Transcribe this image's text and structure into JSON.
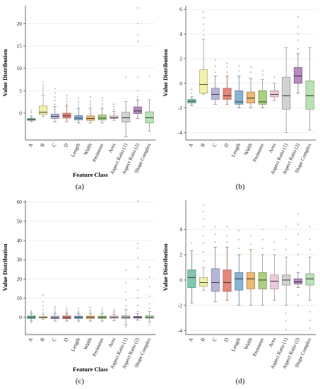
{
  "chart_data": [
    {
      "type": "box",
      "caption": "(a)",
      "xlabel": "Feature Class",
      "ylabel": "Value Distribution",
      "ylim": [
        -6,
        24
      ],
      "yticks": [
        0,
        5,
        10,
        15,
        20
      ],
      "grid": true,
      "categories": [
        "A",
        "B",
        "C",
        "D",
        "Length",
        "Width",
        "Perimeter",
        "Area",
        "Aspect Ratio (1)",
        "Aspect Ratio (2)",
        "Shape Complex"
      ],
      "colors": [
        "#7fc7b0",
        "#f3f1a8",
        "#b8b4d8",
        "#e8857a",
        "#86b2d6",
        "#f0b872",
        "#a9d180",
        "#f0c8dc",
        "#d2d2d2",
        "#b58ac2",
        "#b9e2b4"
      ],
      "boxes": [
        {
          "lw": -1.9,
          "q1": -1.6,
          "med": -1.4,
          "q3": -1.2,
          "uw": -0.8,
          "out": [
            -0.5,
            0.2,
            0.6
          ]
        },
        {
          "lw": -0.8,
          "q1": -0.3,
          "med": 0.2,
          "q3": 1.6,
          "uw": 4.0,
          "out": [
            4.5,
            5.0,
            5.6,
            6.2,
            6.9
          ]
        },
        {
          "lw": -2.0,
          "q1": -1.2,
          "med": -0.7,
          "q3": -0.2,
          "uw": 1.5,
          "out": [
            2.0,
            2.8,
            3.6,
            4.5,
            5.5
          ]
        },
        {
          "lw": -1.9,
          "q1": -1.1,
          "med": -0.6,
          "q3": 0.0,
          "uw": 1.6,
          "out": [
            2.0,
            2.6,
            3.2,
            3.9
          ]
        },
        {
          "lw": -2.2,
          "q1": -1.5,
          "med": -1.1,
          "q3": -0.5,
          "uw": 1.0,
          "out": [
            1.4,
            2.0,
            2.6,
            3.3
          ]
        },
        {
          "lw": -2.2,
          "q1": -1.6,
          "med": -1.2,
          "q3": -0.6,
          "uw": 1.0,
          "out": [
            1.4,
            2.0,
            2.6,
            3.6
          ]
        },
        {
          "lw": -2.2,
          "q1": -1.5,
          "med": -1.1,
          "q3": -0.4,
          "uw": 1.0,
          "out": [
            1.4,
            2.0,
            2.8,
            3.3
          ]
        },
        {
          "lw": -1.6,
          "q1": -1.2,
          "med": -1.0,
          "q3": -0.6,
          "uw": 0.4,
          "out": [
            0.8,
            1.4,
            2.0
          ]
        },
        {
          "lw": -5.3,
          "q1": -2.0,
          "med": -1.0,
          "q3": 0.2,
          "uw": 2.6,
          "out": [
            8.0
          ]
        },
        {
          "lw": -1.2,
          "q1": -0.1,
          "med": 0.5,
          "q3": 1.4,
          "uw": 3.0,
          "out": [
            3.6,
            5.0,
            8.0,
            16.0,
            17.5,
            20.0,
            23.5
          ]
        },
        {
          "lw": -4.0,
          "q1": -2.2,
          "med": -1.0,
          "q3": 0.3,
          "uw": 3.0,
          "out": [
            8.2
          ]
        }
      ]
    },
    {
      "type": "box",
      "caption": "(b)",
      "xlabel": "",
      "ylabel": "Value Distribution",
      "ylim": [
        -4.6,
        6.3
      ],
      "yticks": [
        -4,
        -2,
        0,
        2,
        4,
        6
      ],
      "grid": true,
      "categories": [
        "A",
        "B",
        "C",
        "D",
        "Length",
        "Width",
        "Perimeter",
        "Area",
        "Aspect Ratio (1)",
        "Aspect Ratio (2)",
        "Shape Complex"
      ],
      "colors": [
        "#7fc7b0",
        "#f3f1a8",
        "#b8b4d8",
        "#e8857a",
        "#86b2d6",
        "#f0b872",
        "#a9d180",
        "#f0c8dc",
        "#d2d2d2",
        "#b58ac2",
        "#b9e2b4"
      ],
      "boxes": [
        {
          "lw": -1.8,
          "q1": -1.6,
          "med": -1.45,
          "q3": -1.3,
          "uw": -1.1,
          "out": [
            -0.8,
            -0.5
          ]
        },
        {
          "lw": -0.9,
          "q1": -0.8,
          "med": -0.1,
          "q3": 1.1,
          "uw": 3.6,
          "out": [
            3.9,
            4.3,
            4.8,
            5.3,
            5.8
          ]
        },
        {
          "lw": -1.7,
          "q1": -1.3,
          "med": -0.9,
          "q3": -0.4,
          "uw": 0.6,
          "out": [
            0.9,
            1.4,
            1.9
          ]
        },
        {
          "lw": -1.7,
          "q1": -1.3,
          "med": -1.0,
          "q3": -0.4,
          "uw": 0.6,
          "out": [
            0.9,
            1.3,
            1.6
          ]
        },
        {
          "lw": -2.0,
          "q1": -1.7,
          "med": -1.5,
          "q3": -0.6,
          "uw": 0.6,
          "out": [
            1.0,
            1.4
          ]
        },
        {
          "lw": -2.0,
          "q1": -1.6,
          "med": -1.2,
          "q3": -0.7,
          "uw": 0.4,
          "out": [
            0.9,
            1.3
          ]
        },
        {
          "lw": -2.0,
          "q1": -1.7,
          "med": -1.5,
          "q3": -0.6,
          "uw": 0.3,
          "out": [
            0.7,
            1.0
          ]
        },
        {
          "lw": -1.4,
          "q1": -1.1,
          "med": -0.9,
          "q3": -0.6,
          "uw": 0.0,
          "out": [
            0.5
          ]
        },
        {
          "lw": -4.0,
          "q1": -2.1,
          "med": -1.0,
          "q3": 0.5,
          "uw": 2.9,
          "out": []
        },
        {
          "lw": -0.8,
          "q1": 0.0,
          "med": 0.6,
          "q3": 1.3,
          "uw": 2.4,
          "out": [
            2.8,
            3.5,
            4.0,
            4.6,
            5.4
          ]
        },
        {
          "lw": -3.8,
          "q1": -2.1,
          "med": -1.0,
          "q3": 0.2,
          "uw": 2.9,
          "out": []
        }
      ]
    },
    {
      "type": "box",
      "caption": "(c)",
      "xlabel": "Feature Class",
      "ylabel": "Value Distribution",
      "ylim": [
        -9,
        61
      ],
      "yticks": [
        0,
        10,
        20,
        30,
        40,
        50,
        60
      ],
      "grid": true,
      "categories": [
        "A",
        "B",
        "C",
        "D",
        "Length",
        "Width",
        "Perimeter",
        "Area",
        "Aspect Ratio (1)",
        "Aspect Ratio (2)",
        "Shape Complex"
      ],
      "colors": [
        "#7fc7b0",
        "#f3f1a8",
        "#b8b4d8",
        "#e8857a",
        "#86b2d6",
        "#f0b872",
        "#a9d180",
        "#f0c8dc",
        "#d2d2d2",
        "#b58ac2",
        "#b9e2b4"
      ],
      "boxes": [
        {
          "lw": -2.0,
          "q1": -0.7,
          "med": 0.0,
          "q3": 0.7,
          "uw": 2.0,
          "out": [
            2.6,
            3.2,
            -2.6
          ]
        },
        {
          "lw": -1.2,
          "q1": -0.4,
          "med": -0.1,
          "q3": 0.4,
          "uw": 1.6,
          "out": [
            2.5,
            4.0,
            6.0,
            8.0,
            11.5
          ]
        },
        {
          "lw": -2.0,
          "q1": -0.8,
          "med": -0.2,
          "q3": 0.6,
          "uw": 2.0,
          "out": [
            2.6,
            3.4,
            4.5,
            5.5
          ]
        },
        {
          "lw": -2.0,
          "q1": -0.8,
          "med": -0.1,
          "q3": 0.7,
          "uw": 2.0,
          "out": [
            2.6,
            3.6,
            4.6
          ]
        },
        {
          "lw": -2.0,
          "q1": -0.7,
          "med": 0.0,
          "q3": 0.6,
          "uw": 1.8,
          "out": [
            2.5,
            3.3,
            4.5
          ]
        },
        {
          "lw": -2.0,
          "q1": -0.7,
          "med": 0.0,
          "q3": 0.6,
          "uw": 1.8,
          "out": [
            2.5,
            3.5,
            5.0
          ]
        },
        {
          "lw": -2.0,
          "q1": -0.7,
          "med": 0.0,
          "q3": 0.6,
          "uw": 1.8,
          "out": [
            2.5,
            3.4,
            4.6
          ]
        },
        {
          "lw": -1.8,
          "q1": -0.6,
          "med": 0.0,
          "q3": 0.6,
          "uw": 1.6,
          "out": [
            2.4,
            3.0,
            4.0
          ]
        },
        {
          "lw": -4.0,
          "q1": -0.8,
          "med": 0.0,
          "q3": 0.8,
          "uw": 4.0,
          "out": [
            -5.0,
            6.0,
            9.0,
            13.0,
            18.0,
            24.5
          ]
        },
        {
          "lw": -1.5,
          "q1": -0.5,
          "med": 0.0,
          "q3": 0.5,
          "uw": 1.8,
          "out": [
            3.0,
            6.0,
            10.0,
            14.0,
            20.0,
            26.0,
            31.0,
            36.0,
            38.5,
            60.5
          ]
        },
        {
          "lw": -2.5,
          "q1": -0.6,
          "med": 0.0,
          "q3": 0.9,
          "uw": 3.0,
          "out": [
            -4.0,
            4.5,
            7.0,
            11.0,
            16.0,
            21.0,
            26.0
          ]
        }
      ]
    },
    {
      "type": "box",
      "caption": "(d)",
      "xlabel": "",
      "ylabel": "Value Distribution",
      "ylim": [
        -4.3,
        6.3
      ],
      "yticks": [
        -4,
        -2,
        0,
        2,
        4
      ],
      "grid": true,
      "categories": [
        "A",
        "B",
        "C",
        "D",
        "Length",
        "Width",
        "Perimeter",
        "Area",
        "Aspect Ratio (1)",
        "Aspect Ratio (2)",
        "Shape Complex"
      ],
      "colors": [
        "#7fc7b0",
        "#f3f1a8",
        "#b8b4d8",
        "#e8857a",
        "#86b2d6",
        "#f0b872",
        "#a9d180",
        "#f0c8dc",
        "#d2d2d2",
        "#b58ac2",
        "#b9e2b4"
      ],
      "boxes": [
        {
          "lw": -1.8,
          "q1": -0.6,
          "med": 0.2,
          "q3": 0.8,
          "uw": 2.3,
          "out": [
            2.9
          ]
        },
        {
          "lw": -0.8,
          "q1": -0.5,
          "med": -0.2,
          "q3": 0.2,
          "uw": 1.0,
          "out": [
            1.5,
            2.2,
            2.9,
            3.5,
            4.2,
            4.8,
            5.4,
            5.9
          ]
        },
        {
          "lw": -1.7,
          "q1": -0.9,
          "med": -0.2,
          "q3": 0.9,
          "uw": 2.6,
          "out": [
            3.0,
            3.6,
            4.2
          ]
        },
        {
          "lw": -1.6,
          "q1": -0.9,
          "med": -0.2,
          "q3": 0.8,
          "uw": 2.6,
          "out": [
            3.0,
            3.5,
            4.2
          ]
        },
        {
          "lw": -2.0,
          "q1": -0.8,
          "med": 0.1,
          "q3": 0.6,
          "uw": 2.0,
          "out": [
            2.5,
            3.2,
            3.9
          ]
        },
        {
          "lw": -2.0,
          "q1": -0.7,
          "med": 0.1,
          "q3": 0.6,
          "uw": 2.4,
          "out": [
            2.8,
            3.5
          ]
        },
        {
          "lw": -2.0,
          "q1": -0.7,
          "med": 0.0,
          "q3": 0.6,
          "uw": 2.0,
          "out": [
            2.5,
            3.2,
            4.0
          ]
        },
        {
          "lw": -1.6,
          "q1": -0.7,
          "med": -0.1,
          "q3": 0.4,
          "uw": 2.0,
          "out": [
            2.4,
            3.0
          ]
        },
        {
          "lw": -2.0,
          "q1": -0.4,
          "med": 0.0,
          "q3": 0.4,
          "uw": 1.8,
          "out": [
            -2.6,
            -3.2,
            -3.9,
            2.4,
            3.2,
            4.2
          ]
        },
        {
          "lw": -0.6,
          "q1": -0.3,
          "med": -0.15,
          "q3": 0.1,
          "uw": 0.6,
          "out": [
            -1.2,
            -2.0,
            1.2,
            2.0,
            2.8,
            3.6,
            4.4,
            5.2
          ]
        },
        {
          "lw": -1.6,
          "q1": -0.4,
          "med": 0.1,
          "q3": 0.5,
          "uw": 1.8,
          "out": [
            -2.5,
            -3.2,
            -3.8,
            2.4,
            3.2,
            4.2
          ]
        }
      ]
    }
  ]
}
